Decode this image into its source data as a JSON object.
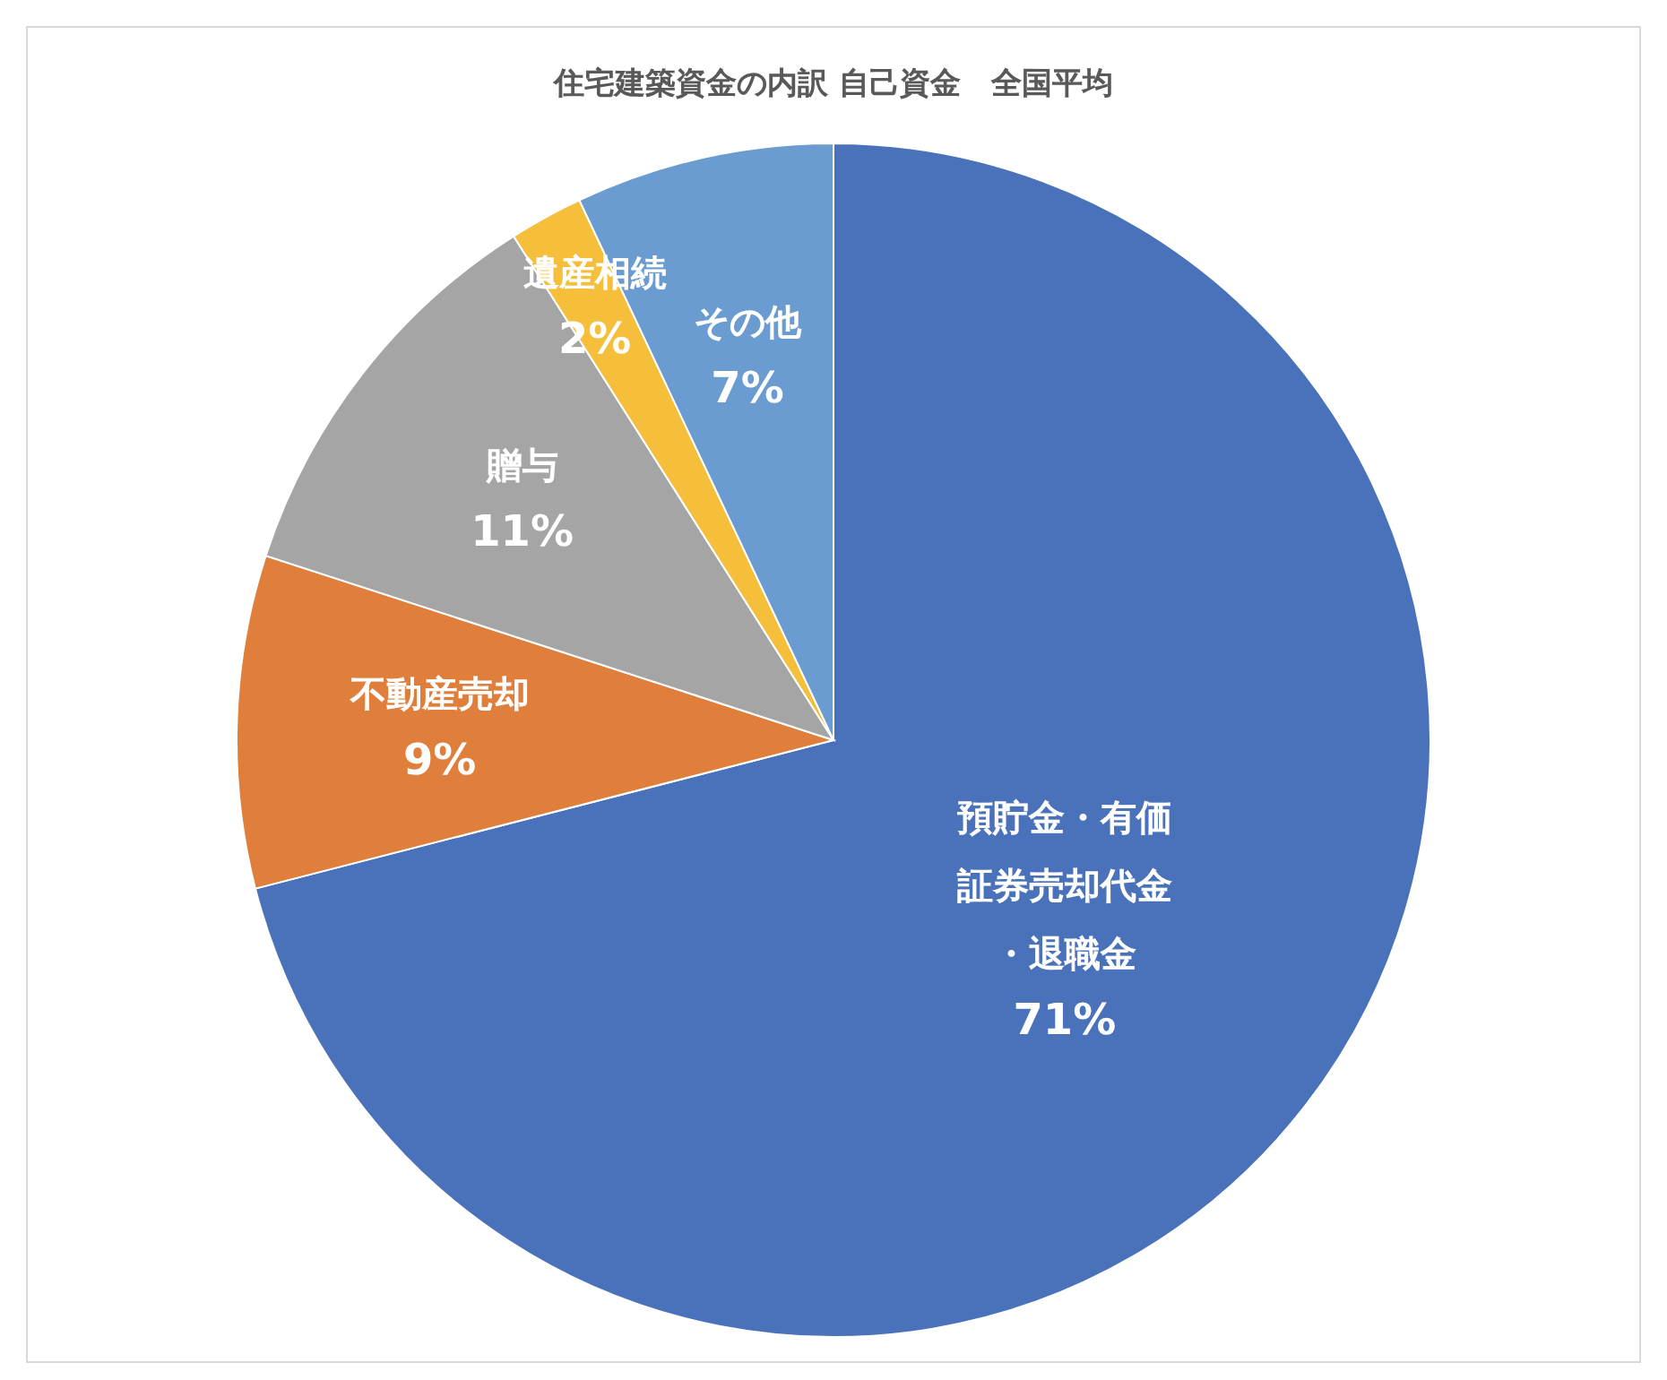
{
  "chart_data": {
    "type": "pie",
    "title": "住宅建築資金の内訳 自己資金　全国平均",
    "categories": [
      "預貯金・有価証券売却代金・退職金",
      "不動産売却",
      "贈与",
      "遺産相続",
      "その他"
    ],
    "values": [
      71,
      9,
      11,
      2,
      7
    ],
    "value_labels": [
      "71%",
      "9%",
      "11%",
      "2%",
      "7%"
    ],
    "colors": [
      "#4a72bb",
      "#e07e3c",
      "#a5a5a5",
      "#f5bf3b",
      "#6a9bd1"
    ]
  }
}
